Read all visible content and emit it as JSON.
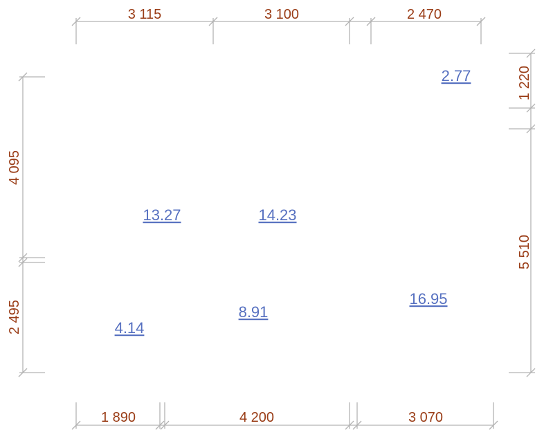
{
  "dimensions": {
    "top": [
      "3 115",
      "3 100",
      "2 470"
    ],
    "bottom": [
      "1 890",
      "4 200",
      "3 070"
    ],
    "left": [
      "4 095",
      "2 495"
    ],
    "right": [
      "1 220",
      "5 510"
    ]
  },
  "areas": [
    "13.27",
    "14.23",
    "2.77",
    "4.14",
    "8.91",
    "16.95"
  ],
  "colors": {
    "dimension_line": "#b3b3b3",
    "dimension_text": "#9a3d17",
    "area_label": "#5670c0",
    "background": "#ffffff"
  }
}
